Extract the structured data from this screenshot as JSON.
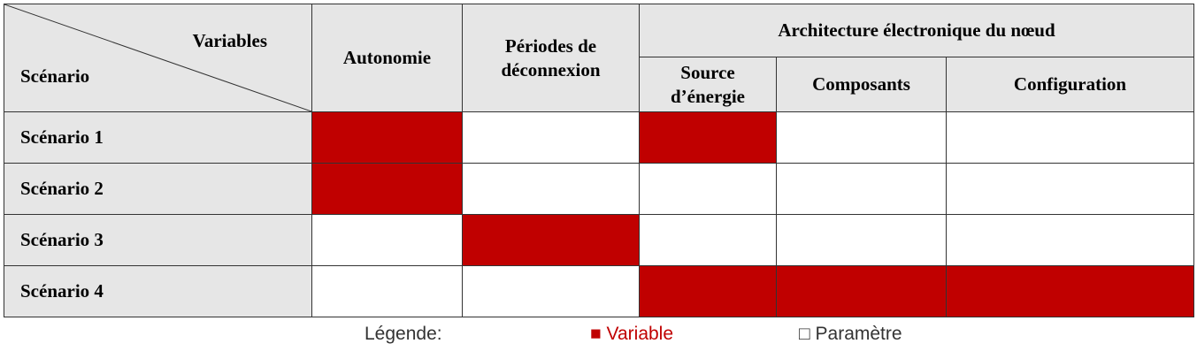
{
  "table": {
    "header": {
      "variables_label": "Variables",
      "scenario_label": "Scénario",
      "autonomie": "Autonomie",
      "periodes": [
        "Périodes de",
        "déconnexion"
      ],
      "architecture": "Architecture électronique du nœud",
      "source": [
        "Source",
        "d’énergie"
      ],
      "composants": "Composants",
      "configuration": "Configuration"
    },
    "rows": [
      {
        "label": "Scénario 1",
        "cells": [
          true,
          false,
          true,
          false,
          false
        ]
      },
      {
        "label": "Scénario 2",
        "cells": [
          true,
          false,
          false,
          false,
          false
        ]
      },
      {
        "label": "Scénario 3",
        "cells": [
          false,
          true,
          false,
          false,
          false
        ]
      },
      {
        "label": "Scénario 4",
        "cells": [
          false,
          false,
          true,
          true,
          true
        ]
      }
    ]
  },
  "legend": {
    "title": "Légende:",
    "filled_symbol": "■",
    "filled_label": "Variable",
    "empty_symbol": "□",
    "empty_label": "Paramètre"
  },
  "colors": {
    "variable": "#c00000",
    "parametre": "#ffffff",
    "header_bg": "#e6e6e6"
  }
}
